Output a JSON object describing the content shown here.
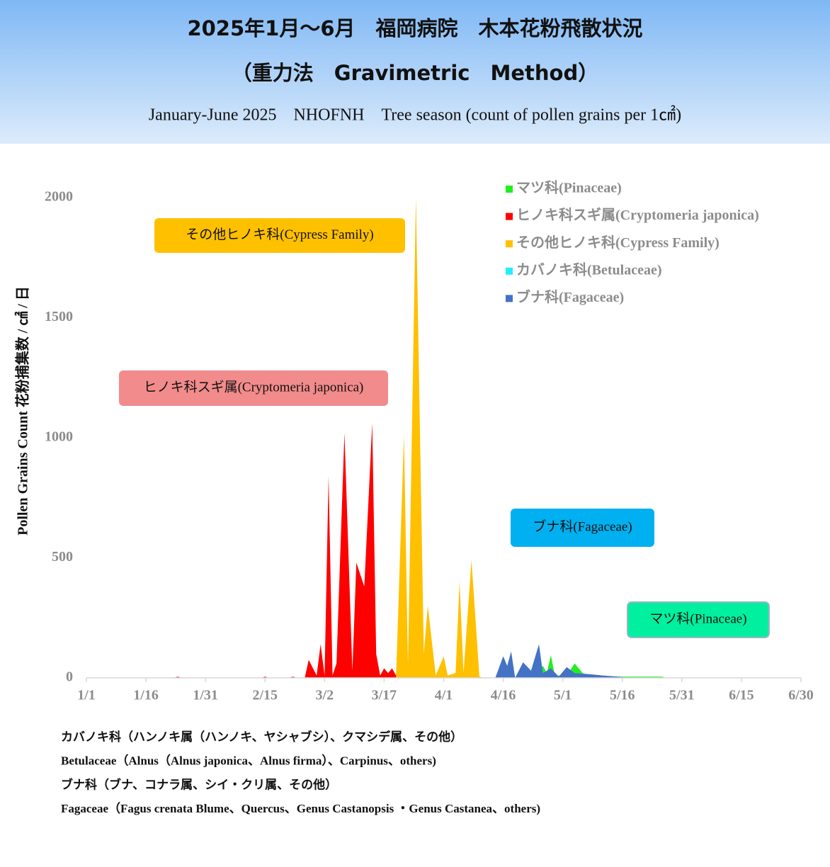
{
  "chart_data": {
    "type": "area",
    "title": "2025年1月～6月　福岡病院　木本花粉飛散状況",
    "subtitle": "（重力法　Gravimetric　Method）",
    "caption": "January-June 2025　NHOFNH　Tree season (count of pollen grains per 1㎠)",
    "y_label": "Pollen Grains Count 花粉捕集数 / ㎠ / 日",
    "xlim": [
      0,
      180
    ],
    "xticks": [
      {
        "value": 0,
        "label": "1/1"
      },
      {
        "value": 15,
        "label": "1/16"
      },
      {
        "value": 30,
        "label": "1/31"
      },
      {
        "value": 45,
        "label": "2/15"
      },
      {
        "value": 60,
        "label": "3/2"
      },
      {
        "value": 75,
        "label": "3/17"
      },
      {
        "value": 90,
        "label": "4/1"
      },
      {
        "value": 105,
        "label": "4/16"
      },
      {
        "value": 120,
        "label": "5/1"
      },
      {
        "value": 135,
        "label": "5/16"
      },
      {
        "value": 150,
        "label": "5/31"
      },
      {
        "value": 165,
        "label": "6/15"
      },
      {
        "value": 180,
        "label": "6/30"
      }
    ],
    "ylim": [
      0,
      2000
    ],
    "yticks": [
      0,
      500,
      1000,
      1500,
      2000
    ],
    "series": [
      {
        "name": "マツ科(Pinaceae)",
        "color": "#22ee22",
        "x": [
          113,
          115,
          116,
          117,
          118,
          121,
          123,
          125,
          127,
          142,
          145,
          146
        ],
        "values": [
          0,
          50,
          20,
          95,
          10,
          10,
          60,
          20,
          5,
          5,
          5,
          0
        ]
      },
      {
        "name": "ヒノキ科スギ属(Cryptomeria japonica)",
        "color": "#ff0000",
        "x": [
          22,
          23,
          24,
          44,
          45,
          46,
          51,
          52,
          53,
          55,
          56,
          58,
          59,
          60,
          61,
          62,
          63,
          65,
          67,
          68,
          70,
          72,
          73,
          74,
          75,
          76,
          77,
          78,
          79,
          80,
          81
        ],
        "values": [
          0,
          5,
          0,
          0,
          5,
          0,
          0,
          5,
          0,
          0,
          75,
          10,
          140,
          10,
          840,
          10,
          60,
          1020,
          30,
          480,
          380,
          1060,
          100,
          10,
          40,
          20,
          40,
          10,
          280,
          20,
          0
        ]
      },
      {
        "name": "その他ヒノキ科(Cypress Family)",
        "color": "#ffc000",
        "x": [
          78,
          80,
          81,
          83,
          85,
          86,
          88,
          90,
          91,
          93,
          94,
          95,
          97,
          99,
          100
        ],
        "values": [
          0,
          1010,
          50,
          2000,
          100,
          300,
          10,
          90,
          10,
          20,
          400,
          20,
          490,
          5,
          0
        ]
      },
      {
        "name": "カバノキ科(Betulaceae)",
        "color": "#22eeff",
        "x": [
          100,
          140
        ],
        "values": [
          0,
          0
        ]
      },
      {
        "name": "ブナ科(Fagaceae)",
        "color": "#4472c4",
        "x": [
          103,
          105,
          106,
          107,
          108,
          110,
          112,
          114,
          115,
          117,
          119,
          121,
          123,
          127,
          130,
          134,
          137
        ],
        "values": [
          0,
          90,
          50,
          110,
          0,
          65,
          30,
          140,
          20,
          40,
          5,
          45,
          20,
          15,
          10,
          5,
          0
        ]
      }
    ],
    "annotations": [
      {
        "text": "その他ヒノキ科(Cypress Family)",
        "color": "#ffc000"
      },
      {
        "text": "ヒノキ科スギ属(Cryptomeria japonica)",
        "color": "#f28b8b"
      },
      {
        "text": "ブナ科(Fagaceae)",
        "color": "#00b0f0"
      },
      {
        "text": "マツ科(Pinaceae)",
        "color": "#00f0a0"
      }
    ],
    "notes": [
      "カバノキ科（ハンノキ属（ハンノキ、ヤシャブシ）、クマシデ属、その他）",
      "Betulaceae（Alnus（Alnus japonica、Alnus firma）、Carpinus、others)",
      "ブナ科（ブナ、コナラ属、シイ・クリ属、その他）",
      "Fagaceae（Fagus crenata Blume、Quercus、Genus Castanopsis ・Genus Castanea、others)"
    ]
  }
}
